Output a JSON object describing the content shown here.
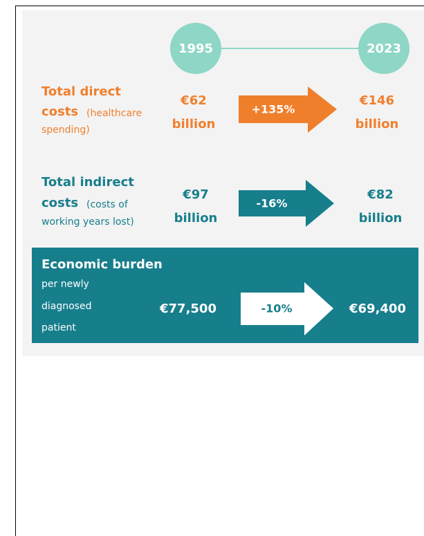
{
  "years": [
    "1995",
    "2023"
  ],
  "rows": [
    {
      "label": [
        "Total direct",
        "costs",
        "(healthcare",
        "spending)"
      ],
      "start": [
        "€62",
        "billion"
      ],
      "change": "+135%",
      "end": [
        "€146",
        "billion"
      ]
    },
    {
      "label": [
        "Total indirect",
        "costs",
        "(costs of",
        "working years lost)"
      ],
      "start": [
        "€97",
        "billion"
      ],
      "change": "-16%",
      "end": [
        "€82",
        "billion"
      ]
    },
    {
      "label": [
        "Economic burden",
        "per newly",
        "diagnosed",
        "patient"
      ],
      "start": "€77,500",
      "change": "-10%",
      "end": "€69,400"
    }
  ]
}
